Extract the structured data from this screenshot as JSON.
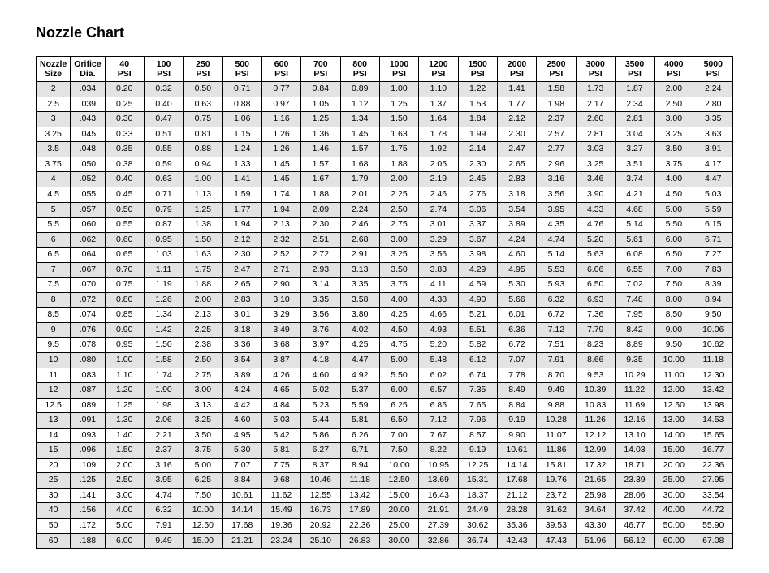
{
  "title": "Nozzle Chart",
  "table": {
    "type": "table",
    "background_color": "#ffffff",
    "band_color": "#e3e3e3",
    "border_color": "#000000",
    "font_size_pt": 10.5,
    "title_fontsize_pt": 18,
    "columns": [
      {
        "line1": "Nozzle",
        "line2": "Size"
      },
      {
        "line1": "Orifice",
        "line2": "Dia."
      },
      {
        "line1": "40",
        "line2": "PSI"
      },
      {
        "line1": "100",
        "line2": "PSI"
      },
      {
        "line1": "250",
        "line2": "PSI"
      },
      {
        "line1": "500",
        "line2": "PSI"
      },
      {
        "line1": "600",
        "line2": "PSI"
      },
      {
        "line1": "700",
        "line2": "PSI"
      },
      {
        "line1": "800",
        "line2": "PSI"
      },
      {
        "line1": "1000",
        "line2": "PSI"
      },
      {
        "line1": "1200",
        "line2": "PSI"
      },
      {
        "line1": "1500",
        "line2": "PSI"
      },
      {
        "line1": "2000",
        "line2": "PSI"
      },
      {
        "line1": "2500",
        "line2": "PSI"
      },
      {
        "line1": "3000",
        "line2": "PSI"
      },
      {
        "line1": "3500",
        "line2": "PSI"
      },
      {
        "line1": "4000",
        "line2": "PSI"
      },
      {
        "line1": "5000",
        "line2": "PSI"
      }
    ],
    "rows": [
      {
        "band": true,
        "cells": [
          "2",
          ".034",
          "0.20",
          "0.32",
          "0.50",
          "0.71",
          "0.77",
          "0.84",
          "0.89",
          "1.00",
          "1.10",
          "1.22",
          "1.41",
          "1.58",
          "1.73",
          "1.87",
          "2.00",
          "2.24"
        ]
      },
      {
        "band": false,
        "cells": [
          "2.5",
          ".039",
          "0.25",
          "0.40",
          "0.63",
          "0.88",
          "0.97",
          "1.05",
          "1.12",
          "1.25",
          "1.37",
          "1.53",
          "1.77",
          "1.98",
          "2.17",
          "2.34",
          "2.50",
          "2.80"
        ]
      },
      {
        "band": true,
        "cells": [
          "3",
          ".043",
          "0.30",
          "0.47",
          "0.75",
          "1.06",
          "1.16",
          "1.25",
          "1.34",
          "1.50",
          "1.64",
          "1.84",
          "2.12",
          "2.37",
          "2.60",
          "2.81",
          "3.00",
          "3.35"
        ]
      },
      {
        "band": false,
        "cells": [
          "3.25",
          ".045",
          "0.33",
          "0.51",
          "0.81",
          "1.15",
          "1.26",
          "1.36",
          "1.45",
          "1.63",
          "1.78",
          "1.99",
          "2.30",
          "2.57",
          "2.81",
          "3.04",
          "3.25",
          "3.63"
        ]
      },
      {
        "band": true,
        "cells": [
          "3.5",
          ".048",
          "0.35",
          "0.55",
          "0.88",
          "1.24",
          "1.26",
          "1.46",
          "1.57",
          "1.75",
          "1.92",
          "2.14",
          "2.47",
          "2.77",
          "3.03",
          "3.27",
          "3.50",
          "3.91"
        ]
      },
      {
        "band": false,
        "cells": [
          "3.75",
          ".050",
          "0.38",
          "0.59",
          "0.94",
          "1.33",
          "1.45",
          "1.57",
          "1.68",
          "1.88",
          "2.05",
          "2.30",
          "2.65",
          "2.96",
          "3.25",
          "3.51",
          "3.75",
          "4.17"
        ]
      },
      {
        "band": true,
        "cells": [
          "4",
          ".052",
          "0.40",
          "0.63",
          "1.00",
          "1.41",
          "1.45",
          "1.67",
          "1.79",
          "2.00",
          "2.19",
          "2.45",
          "2.83",
          "3.16",
          "3.46",
          "3.74",
          "4.00",
          "4.47"
        ]
      },
      {
        "band": false,
        "cells": [
          "4.5",
          ".055",
          "0.45",
          "0.71",
          "1.13",
          "1.59",
          "1.74",
          "1.88",
          "2.01",
          "2.25",
          "2.46",
          "2.76",
          "3.18",
          "3.56",
          "3.90",
          "4.21",
          "4.50",
          "5.03"
        ]
      },
      {
        "band": true,
        "cells": [
          "5",
          ".057",
          "0.50",
          "0.79",
          "1.25",
          "1.77",
          "1.94",
          "2.09",
          "2.24",
          "2.50",
          "2.74",
          "3.06",
          "3.54",
          "3.95",
          "4.33",
          "4.68",
          "5.00",
          "5.59"
        ]
      },
      {
        "band": false,
        "cells": [
          "5.5",
          ".060",
          "0.55",
          "0.87",
          "1.38",
          "1.94",
          "2.13",
          "2.30",
          "2.46",
          "2.75",
          "3.01",
          "3.37",
          "3.89",
          "4.35",
          "4.76",
          "5.14",
          "5.50",
          "6.15"
        ]
      },
      {
        "band": true,
        "cells": [
          "6",
          ".062",
          "0.60",
          "0.95",
          "1.50",
          "2.12",
          "2.32",
          "2.51",
          "2.68",
          "3.00",
          "3.29",
          "3.67",
          "4.24",
          "4.74",
          "5.20",
          "5.61",
          "6.00",
          "6.71"
        ]
      },
      {
        "band": false,
        "cells": [
          "6.5",
          ".064",
          "0.65",
          "1.03",
          "1.63",
          "2.30",
          "2.52",
          "2.72",
          "2.91",
          "3.25",
          "3.56",
          "3.98",
          "4.60",
          "5.14",
          "5.63",
          "6.08",
          "6.50",
          "7.27"
        ]
      },
      {
        "band": true,
        "cells": [
          "7",
          ".067",
          "0.70",
          "1.11",
          "1.75",
          "2.47",
          "2.71",
          "2.93",
          "3.13",
          "3.50",
          "3.83",
          "4.29",
          "4.95",
          "5.53",
          "6.06",
          "6.55",
          "7.00",
          "7.83"
        ]
      },
      {
        "band": false,
        "cells": [
          "7.5",
          ".070",
          "0.75",
          "1.19",
          "1.88",
          "2.65",
          "2.90",
          "3.14",
          "3.35",
          "3.75",
          "4.11",
          "4.59",
          "5.30",
          "5.93",
          "6.50",
          "7.02",
          "7.50",
          "8.39"
        ]
      },
      {
        "band": true,
        "cells": [
          "8",
          ".072",
          "0.80",
          "1.26",
          "2.00",
          "2.83",
          "3.10",
          "3.35",
          "3.58",
          "4.00",
          "4.38",
          "4.90",
          "5.66",
          "6.32",
          "6.93",
          "7.48",
          "8.00",
          "8.94"
        ]
      },
      {
        "band": false,
        "cells": [
          "8.5",
          ".074",
          "0.85",
          "1.34",
          "2.13",
          "3.01",
          "3.29",
          "3.56",
          "3.80",
          "4.25",
          "4.66",
          "5.21",
          "6.01",
          "6.72",
          "7.36",
          "7.95",
          "8.50",
          "9.50"
        ]
      },
      {
        "band": true,
        "cells": [
          "9",
          ".076",
          "0.90",
          "1.42",
          "2.25",
          "3.18",
          "3.49",
          "3.76",
          "4.02",
          "4.50",
          "4.93",
          "5.51",
          "6.36",
          "7.12",
          "7.79",
          "8.42",
          "9.00",
          "10.06"
        ]
      },
      {
        "band": false,
        "cells": [
          "9.5",
          ".078",
          "0.95",
          "1.50",
          "2.38",
          "3.36",
          "3.68",
          "3.97",
          "4.25",
          "4.75",
          "5.20",
          "5.82",
          "6.72",
          "7.51",
          "8.23",
          "8.89",
          "9.50",
          "10.62"
        ]
      },
      {
        "band": true,
        "cells": [
          "10",
          ".080",
          "1.00",
          "1.58",
          "2.50",
          "3.54",
          "3.87",
          "4.18",
          "4.47",
          "5.00",
          "5.48",
          "6.12",
          "7.07",
          "7.91",
          "8.66",
          "9.35",
          "10.00",
          "11.18"
        ]
      },
      {
        "band": false,
        "cells": [
          "11",
          ".083",
          "1.10",
          "1.74",
          "2.75",
          "3.89",
          "4.26",
          "4.60",
          "4.92",
          "5.50",
          "6.02",
          "6.74",
          "7.78",
          "8.70",
          "9.53",
          "10.29",
          "11.00",
          "12.30"
        ]
      },
      {
        "band": true,
        "cells": [
          "12",
          ".087",
          "1.20",
          "1.90",
          "3.00",
          "4.24",
          "4.65",
          "5.02",
          "5.37",
          "6.00",
          "6.57",
          "7.35",
          "8.49",
          "9.49",
          "10.39",
          "11.22",
          "12.00",
          "13.42"
        ]
      },
      {
        "band": false,
        "cells": [
          "12.5",
          ".089",
          "1.25",
          "1.98",
          "3.13",
          "4.42",
          "4.84",
          "5.23",
          "5.59",
          "6.25",
          "6.85",
          "7.65",
          "8.84",
          "9.88",
          "10.83",
          "11.69",
          "12.50",
          "13.98"
        ]
      },
      {
        "band": true,
        "cells": [
          "13",
          ".091",
          "1.30",
          "2.06",
          "3.25",
          "4.60",
          "5.03",
          "5.44",
          "5.81",
          "6.50",
          "7.12",
          "7.96",
          "9.19",
          "10.28",
          "11.26",
          "12.16",
          "13.00",
          "14.53"
        ]
      },
      {
        "band": false,
        "cells": [
          "14",
          ".093",
          "1.40",
          "2.21",
          "3.50",
          "4.95",
          "5.42",
          "5.86",
          "6.26",
          "7.00",
          "7.67",
          "8.57",
          "9.90",
          "11.07",
          "12.12",
          "13.10",
          "14.00",
          "15.65"
        ]
      },
      {
        "band": true,
        "cells": [
          "15",
          ".096",
          "1.50",
          "2.37",
          "3.75",
          "5.30",
          "5.81",
          "6.27",
          "6.71",
          "7.50",
          "8.22",
          "9.19",
          "10.61",
          "11.86",
          "12.99",
          "14.03",
          "15.00",
          "16.77"
        ]
      },
      {
        "band": false,
        "cells": [
          "20",
          ".109",
          "2.00",
          "3.16",
          "5.00",
          "7.07",
          "7.75",
          "8.37",
          "8.94",
          "10.00",
          "10.95",
          "12.25",
          "14.14",
          "15.81",
          "17.32",
          "18.71",
          "20.00",
          "22.36"
        ]
      },
      {
        "band": true,
        "cells": [
          "25",
          ".125",
          "2.50",
          "3.95",
          "6.25",
          "8.84",
          "9.68",
          "10.46",
          "11.18",
          "12.50",
          "13.69",
          "15.31",
          "17.68",
          "19.76",
          "21.65",
          "23.39",
          "25.00",
          "27.95"
        ]
      },
      {
        "band": false,
        "cells": [
          "30",
          ".141",
          "3.00",
          "4.74",
          "7.50",
          "10.61",
          "11.62",
          "12.55",
          "13.42",
          "15.00",
          "16.43",
          "18.37",
          "21.12",
          "23.72",
          "25.98",
          "28.06",
          "30.00",
          "33.54"
        ]
      },
      {
        "band": true,
        "cells": [
          "40",
          ".156",
          "4.00",
          "6.32",
          "10.00",
          "14.14",
          "15.49",
          "16.73",
          "17.89",
          "20.00",
          "21.91",
          "24.49",
          "28.28",
          "31.62",
          "34.64",
          "37.42",
          "40.00",
          "44.72"
        ]
      },
      {
        "band": false,
        "cells": [
          "50",
          ".172",
          "5.00",
          "7.91",
          "12.50",
          "17.68",
          "19.36",
          "20.92",
          "22.36",
          "25.00",
          "27.39",
          "30.62",
          "35.36",
          "39.53",
          "43.30",
          "46.77",
          "50.00",
          "55.90"
        ]
      },
      {
        "band": true,
        "cells": [
          "60",
          ".188",
          "6.00",
          "9.49",
          "15.00",
          "21.21",
          "23.24",
          "25.10",
          "26.83",
          "30.00",
          "32.86",
          "36.74",
          "42.43",
          "47.43",
          "51.96",
          "56.12",
          "60.00",
          "67.08"
        ]
      }
    ]
  }
}
